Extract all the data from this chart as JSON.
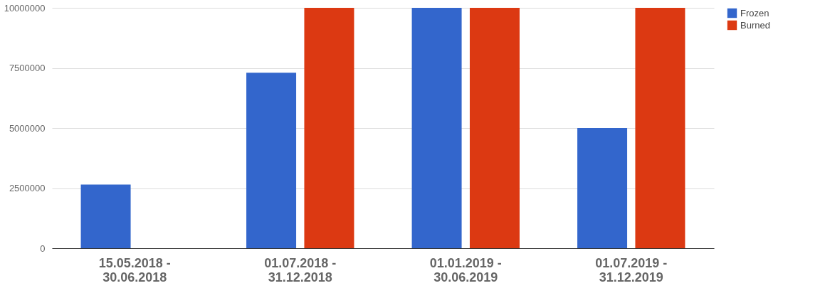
{
  "chart_data": {
    "type": "bar",
    "categories": [
      "15.05.2018 -\n30.06.2018",
      "01.07.2018 -\n31.12.2018",
      "01.01.2019 -\n30.06.2019",
      "01.07.2019 -\n31.12.2019"
    ],
    "series": [
      {
        "name": "Frozen",
        "color": "#3366cc",
        "values": [
          2650000,
          7300000,
          10000000,
          5000000
        ]
      },
      {
        "name": "Burned",
        "color": "#dc3912",
        "values": [
          null,
          10000000,
          10000000,
          10000000
        ]
      }
    ],
    "ylim": [
      0,
      10000000
    ],
    "yticks": [
      0,
      2500000,
      5000000,
      7500000,
      10000000
    ],
    "grid": "y",
    "legend": "top right"
  }
}
